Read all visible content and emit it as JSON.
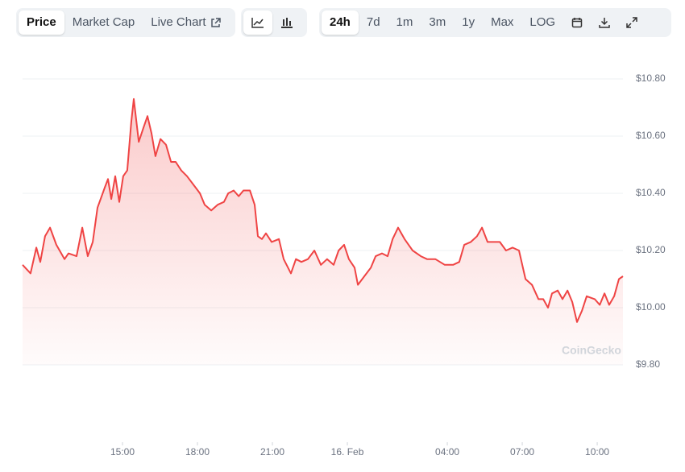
{
  "toolbar": {
    "views": [
      "Price",
      "Market Cap",
      "Live Chart"
    ],
    "ranges": [
      "24h",
      "7d",
      "1m",
      "3m",
      "1y",
      "Max",
      "LOG"
    ]
  },
  "chart_data": {
    "type": "line",
    "watermark": "CoinGecko",
    "x": [
      11,
      11.32,
      11.55,
      11.71,
      11.9,
      12.1,
      12.35,
      12.68,
      12.84,
      13.16,
      13.39,
      13.61,
      13.81,
      14.0,
      14.29,
      14.42,
      14.55,
      14.71,
      14.87,
      15.03,
      15.19,
      15.35,
      15.45,
      15.65,
      15.84,
      16.0,
      16.16,
      16.32,
      16.52,
      16.74,
      16.94,
      17.13,
      17.35,
      17.58,
      17.84,
      18.1,
      18.29,
      18.55,
      18.81,
      19.06,
      19.23,
      19.45,
      19.65,
      19.84,
      20.1,
      20.29,
      20.42,
      20.58,
      20.74,
      20.97,
      21.26,
      21.45,
      21.74,
      21.94,
      22.16,
      22.42,
      22.68,
      22.94,
      23.19,
      23.45,
      23.65,
      23.87,
      24.06,
      24.29,
      24.42,
      24.68,
      24.94,
      25.13,
      25.39,
      25.61,
      25.81,
      26.03,
      26.29,
      26.61,
      26.94,
      27.19,
      27.52,
      27.9,
      28.23,
      28.48,
      28.68,
      28.94,
      29.19,
      29.39,
      29.61,
      29.84,
      30.1,
      30.35,
      30.61,
      30.87,
      31.13,
      31.39,
      31.65,
      31.84,
      32.03,
      32.19,
      32.42,
      32.61,
      32.81,
      33.0,
      33.19,
      33.39,
      33.58,
      33.9,
      34.1,
      34.29,
      34.48,
      34.68,
      34.87,
      35.03
    ],
    "series": [
      {
        "name": "Price",
        "color": "#ef4444",
        "values": [
          10.15,
          10.12,
          10.21,
          10.16,
          10.25,
          10.28,
          10.22,
          10.17,
          10.19,
          10.18,
          10.28,
          10.18,
          10.23,
          10.35,
          10.42,
          10.45,
          10.38,
          10.46,
          10.37,
          10.46,
          10.48,
          10.65,
          10.73,
          10.58,
          10.63,
          10.67,
          10.61,
          10.53,
          10.59,
          10.57,
          10.51,
          10.51,
          10.48,
          10.46,
          10.43,
          10.4,
          10.36,
          10.34,
          10.36,
          10.37,
          10.4,
          10.41,
          10.39,
          10.41,
          10.41,
          10.36,
          10.25,
          10.24,
          10.26,
          10.23,
          10.24,
          10.17,
          10.12,
          10.17,
          10.16,
          10.17,
          10.2,
          10.15,
          10.17,
          10.15,
          10.2,
          10.22,
          10.17,
          10.14,
          10.08,
          10.11,
          10.14,
          10.18,
          10.19,
          10.18,
          10.24,
          10.28,
          10.24,
          10.2,
          10.18,
          10.17,
          10.17,
          10.15,
          10.15,
          10.16,
          10.22,
          10.23,
          10.25,
          10.28,
          10.23,
          10.23,
          10.23,
          10.2,
          10.21,
          10.2,
          10.1,
          10.08,
          10.03,
          10.03,
          10.0,
          10.05,
          10.06,
          10.03,
          10.06,
          10.02,
          9.95,
          9.99,
          10.04,
          10.03,
          10.01,
          10.05,
          10.01,
          10.04,
          10.1,
          10.11
        ]
      }
    ],
    "xlim": [
      11,
      35.03
    ],
    "xticks": [
      {
        "value": 15,
        "label": "15:00"
      },
      {
        "value": 18,
        "label": "18:00"
      },
      {
        "value": 21,
        "label": "21:00"
      },
      {
        "value": 24,
        "label": "16. Feb"
      },
      {
        "value": 28,
        "label": "04:00"
      },
      {
        "value": 31,
        "label": "07:00"
      },
      {
        "value": 34,
        "label": "10:00"
      }
    ],
    "ylim": [
      9.8,
      10.8
    ],
    "yticks": [
      {
        "value": 9.8,
        "label": "$9.80"
      },
      {
        "value": 10.0,
        "label": "$10.00"
      },
      {
        "value": 10.2,
        "label": "$10.20"
      },
      {
        "value": 10.4,
        "label": "$10.40"
      },
      {
        "value": 10.6,
        "label": "$10.60"
      },
      {
        "value": 10.8,
        "label": "$10.80"
      }
    ],
    "grid": true
  }
}
